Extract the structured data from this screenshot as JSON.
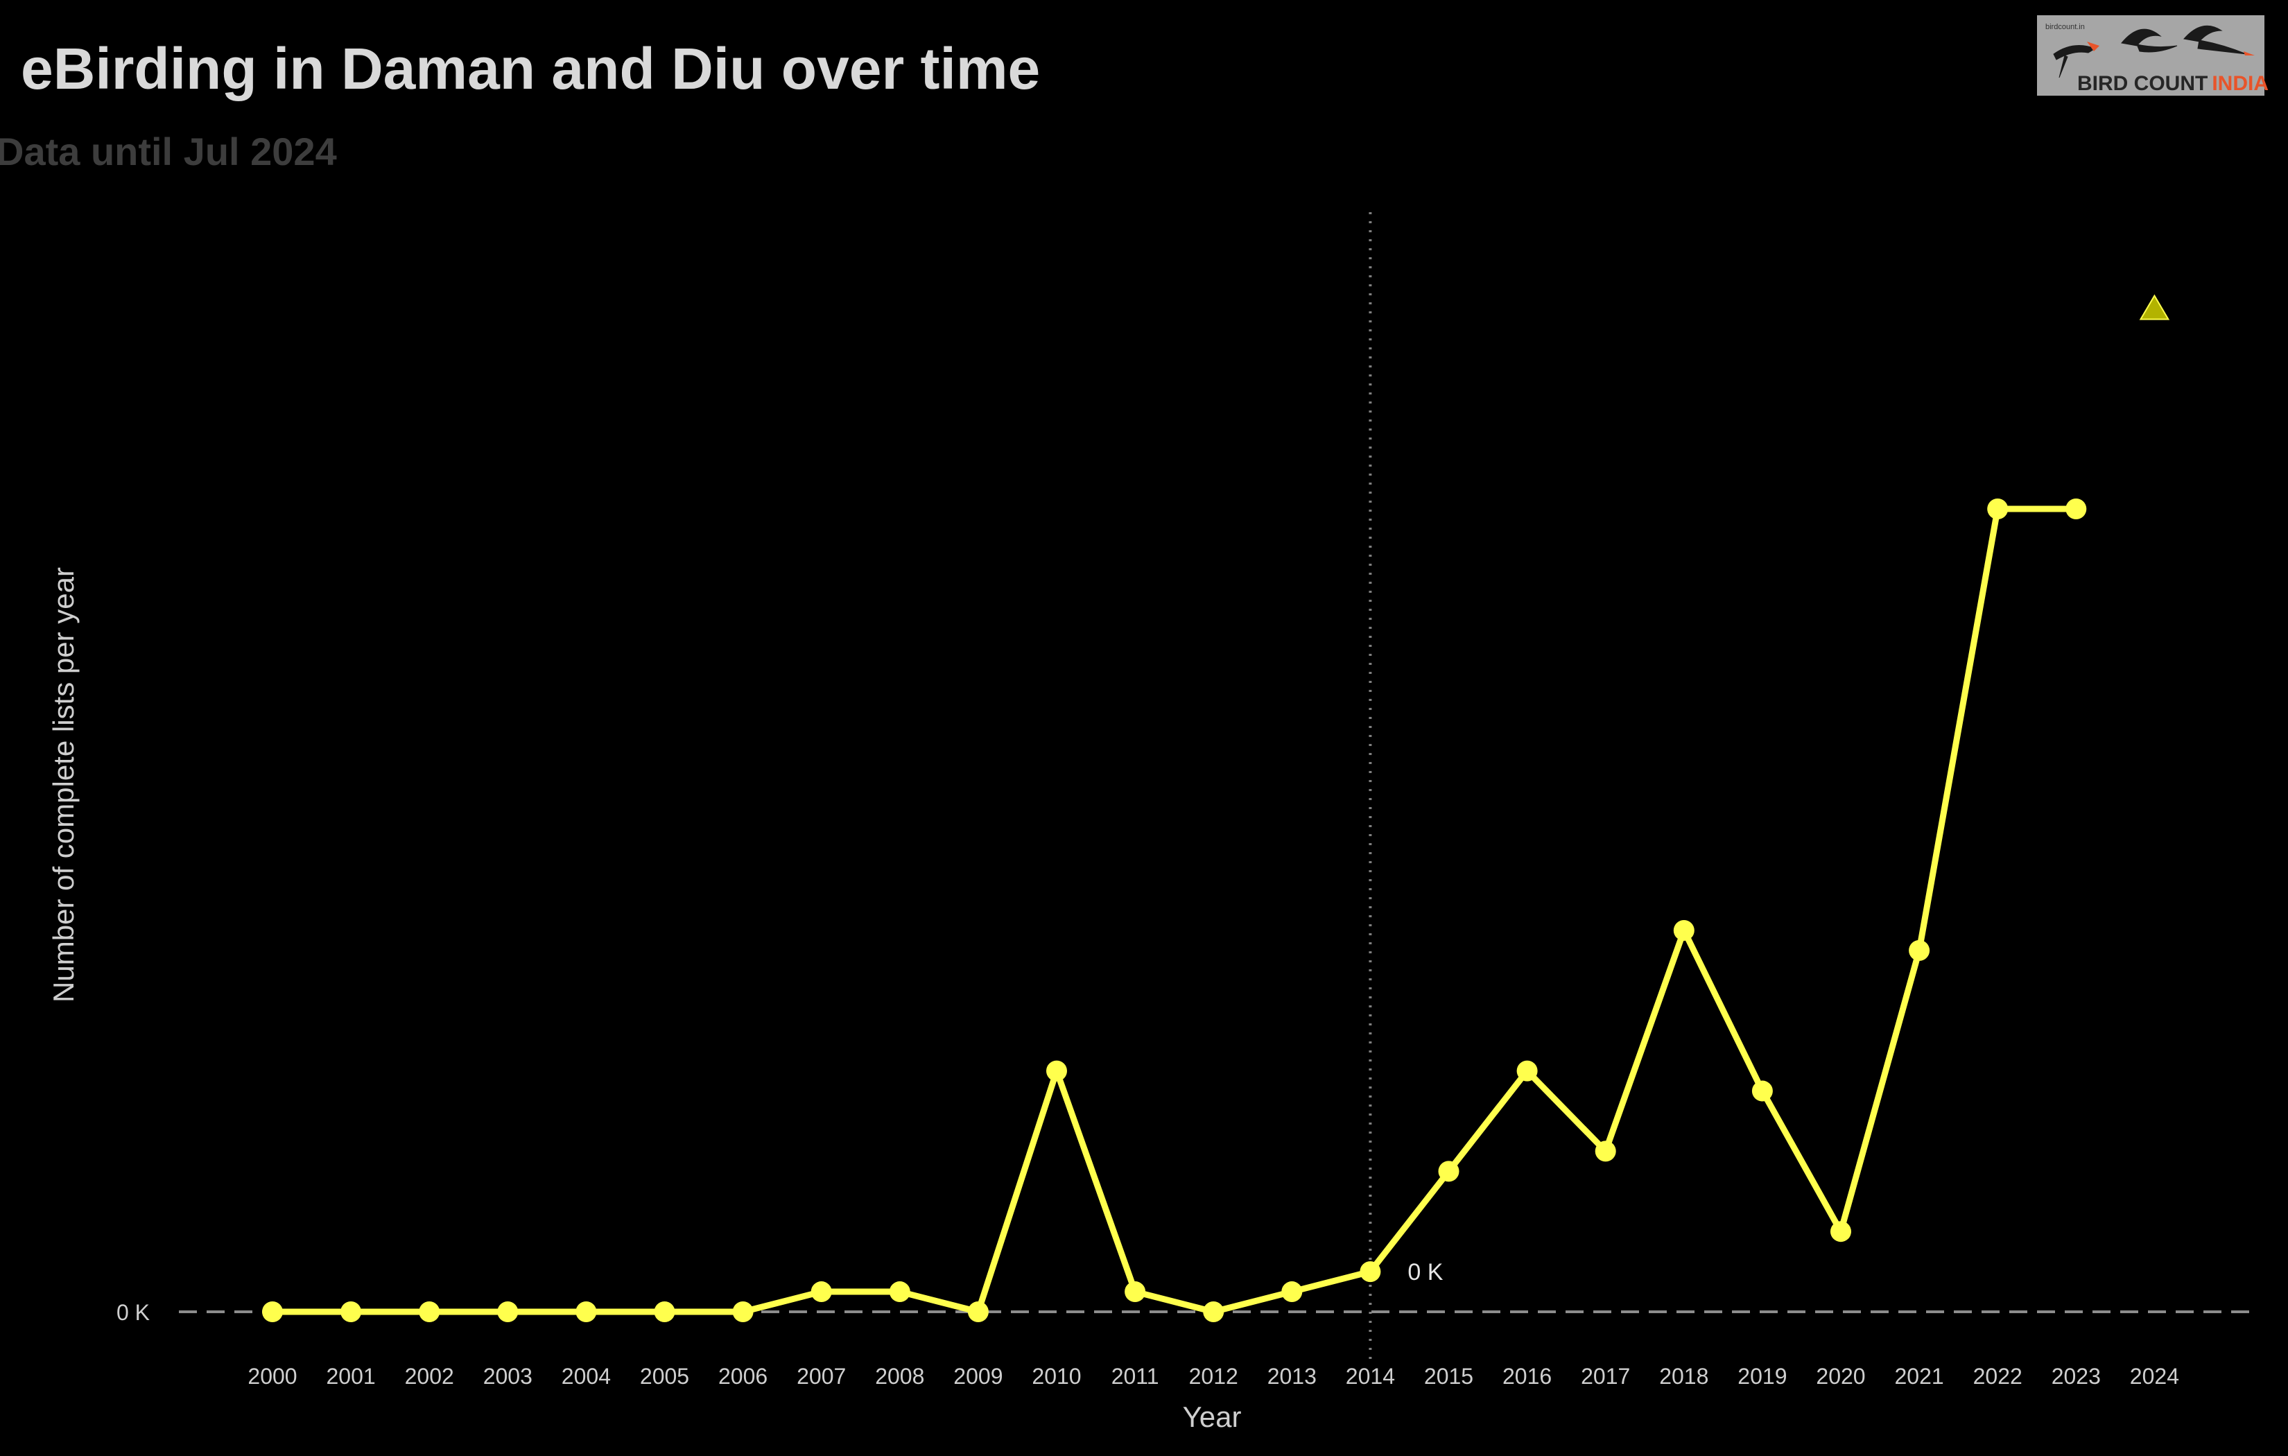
{
  "chart_data": {
    "type": "line",
    "title": "eBirding in Daman and Diu over time",
    "subtitle": "Data until Jul 2024",
    "xlabel": "Year",
    "ylabel": "Number of complete lists per year",
    "y_tick_labels": [
      "0 K"
    ],
    "ylim": [
      0,
      0.53
    ],
    "grid": false,
    "legend": "none",
    "x": [
      2000,
      2001,
      2002,
      2003,
      2004,
      2005,
      2006,
      2007,
      2008,
      2009,
      2010,
      2011,
      2012,
      2013,
      2014,
      2015,
      2016,
      2017,
      2018,
      2019,
      2020,
      2021,
      2022,
      2023,
      2024
    ],
    "series": [
      {
        "values": [
          0,
          0,
          0,
          0,
          0,
          0,
          0,
          0.01,
          0.01,
          0,
          0.12,
          0.01,
          0,
          0.01,
          0.02,
          0.07,
          0.12,
          0.08,
          0.19,
          0.11,
          0.04,
          0.18,
          0.4,
          0.4,
          null
        ],
        "color": "#ffff4d"
      }
    ],
    "partial_year_marker": {
      "x": 2024,
      "value": 0.5,
      "shape": "triangle",
      "color": "#b3b300"
    },
    "reference_line": {
      "x": 2014,
      "style": "dotted",
      "color": "#7f7f7f"
    },
    "baseline": {
      "y": 0,
      "style": "dashed",
      "color": "#8c8c8c"
    },
    "annotations": [
      {
        "x": 2014,
        "y": 0.02,
        "text": "0 K"
      }
    ]
  },
  "logo": {
    "small_text": "birdcount.in",
    "word1": "BIRD COUNT",
    "word2": "INDIA",
    "background": "#a6a6a6",
    "word1_color": "#262626",
    "word2_color": "#e8542a"
  }
}
